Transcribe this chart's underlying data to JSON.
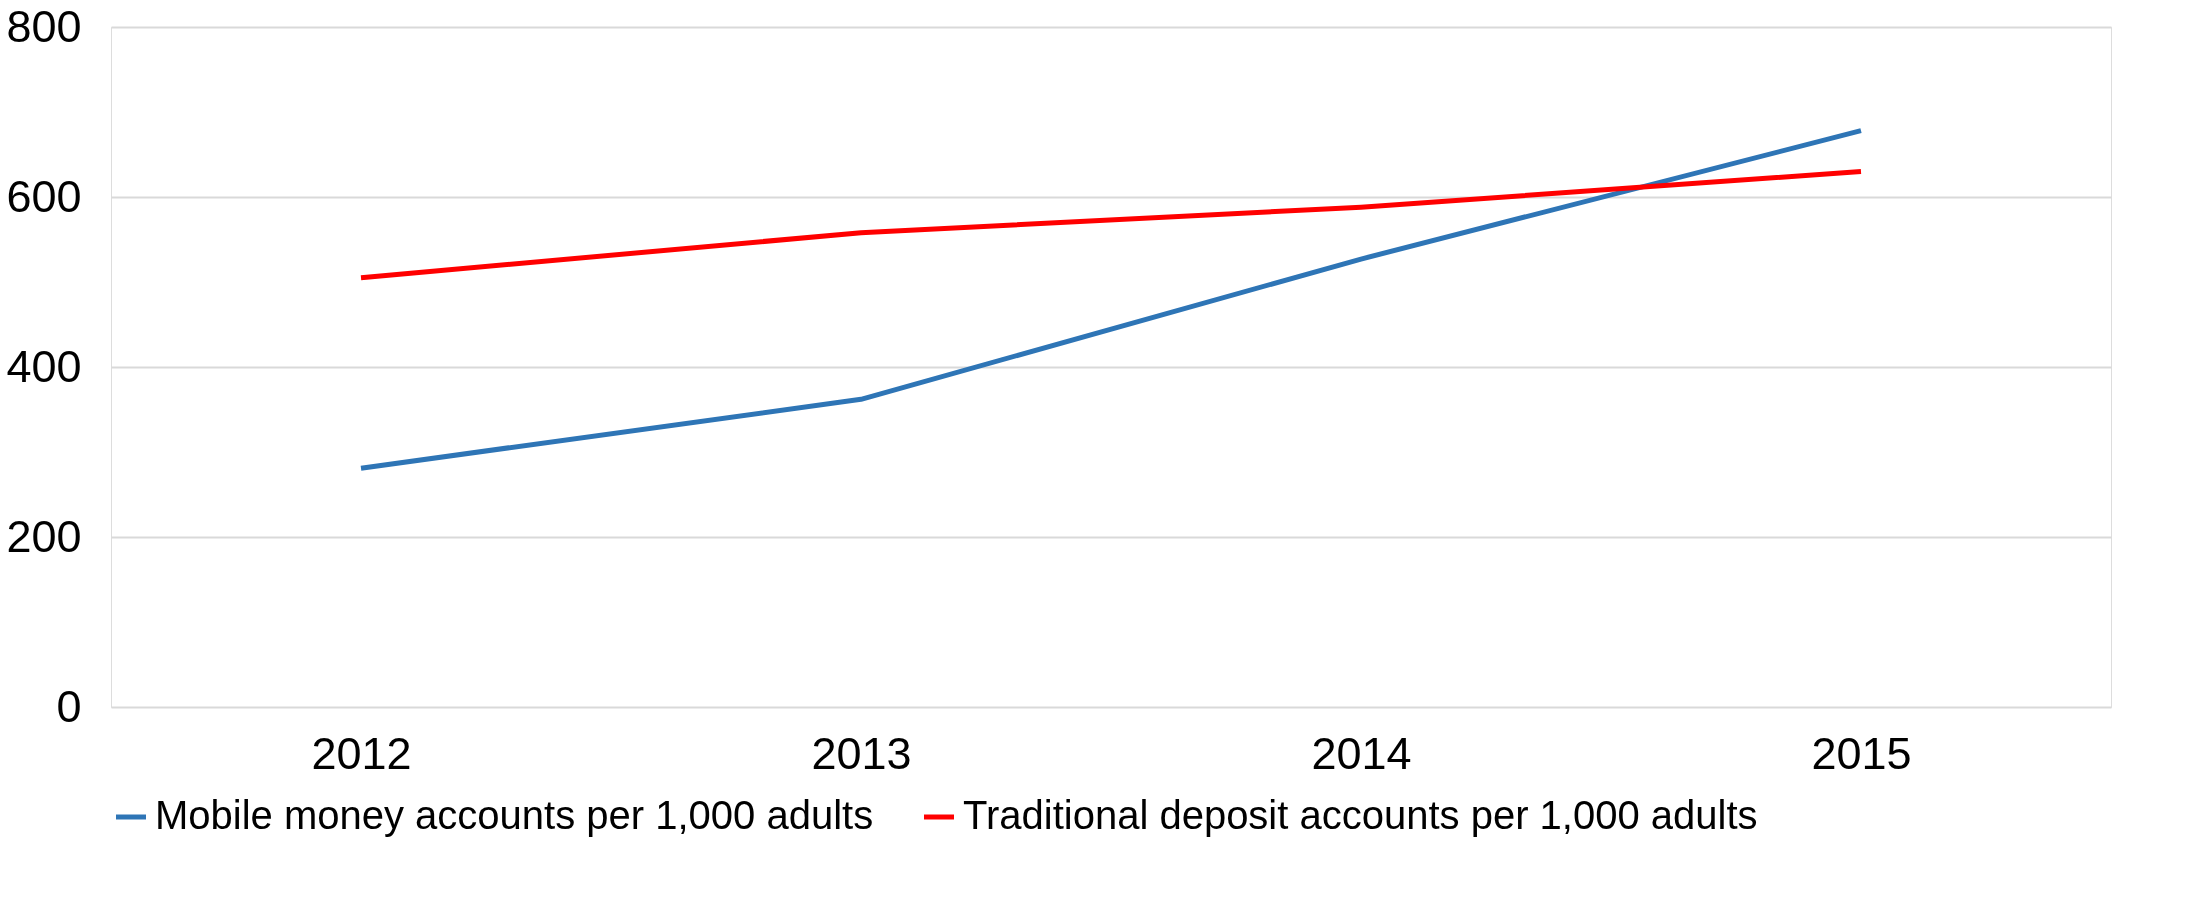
{
  "chart_data": {
    "type": "line",
    "categories": [
      "2012",
      "2013",
      "2014",
      "2015"
    ],
    "series": [
      {
        "name": "Mobile money accounts per 1,000 adults",
        "color": "#2e75b6",
        "values": [
          281,
          362,
          527,
          678
        ]
      },
      {
        "name": "Traditional deposit accounts per 1,000 adults",
        "color": "#ff0000",
        "values": [
          505,
          558,
          588,
          630
        ]
      }
    ],
    "ylim": [
      0,
      800
    ],
    "yticks": [
      0,
      200,
      400,
      600,
      800
    ],
    "grid": "y",
    "legend": "bottom",
    "marker": "none",
    "line_style": "solid"
  }
}
